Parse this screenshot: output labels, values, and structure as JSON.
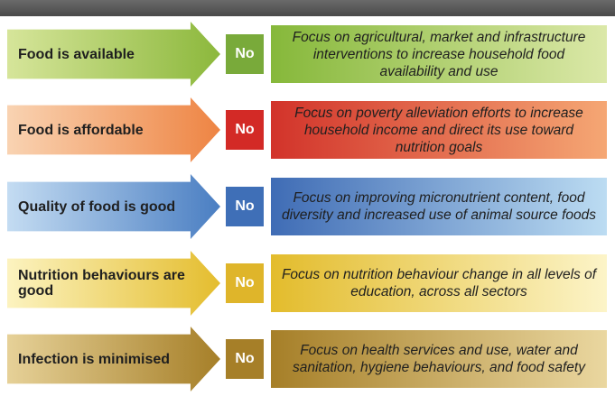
{
  "rows": [
    {
      "condition": "Food is available",
      "answer": "No",
      "action": "Focus on agricultural, market and infrastructure interventions to increase household food availability and use"
    },
    {
      "condition": "Food is affordable",
      "answer": "No",
      "action": "Focus on poverty alleviation efforts to increase household income and direct its use toward nutrition goals"
    },
    {
      "condition": "Quality of food is good",
      "answer": "No",
      "action": "Focus on improving micronutrient content, food diversity and increased use of animal source foods"
    },
    {
      "condition": "Nutrition behaviours are good",
      "answer": "No",
      "action": "Focus on nutrition behaviour change in all levels of education, across all sectors"
    },
    {
      "condition": "Infection is minimised",
      "answer": "No",
      "action": "Focus on health services and use, water and sanitation, hygiene behaviours, and food safety"
    }
  ]
}
